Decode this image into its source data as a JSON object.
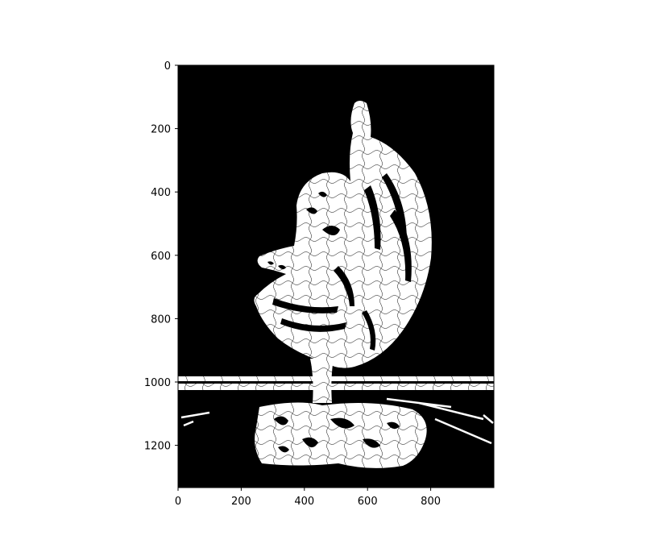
{
  "figure": {
    "image_description_free": true,
    "axes": {
      "x": {
        "range": [
          0,
          1000
        ],
        "ticks": [
          0,
          200,
          400,
          600,
          800
        ],
        "tick_labels": [
          "0",
          "200",
          "400",
          "600",
          "800"
        ]
      },
      "y": {
        "range": [
          0,
          1333
        ],
        "inverted": true,
        "ticks": [
          0,
          200,
          400,
          600,
          800,
          1000,
          1200
        ],
        "tick_labels": [
          "0",
          "200",
          "400",
          "600",
          "800",
          "1000",
          "1200"
        ]
      }
    },
    "colors": {
      "background": "#000000",
      "foreground": "#ffffff",
      "texture": "#000000"
    }
  }
}
